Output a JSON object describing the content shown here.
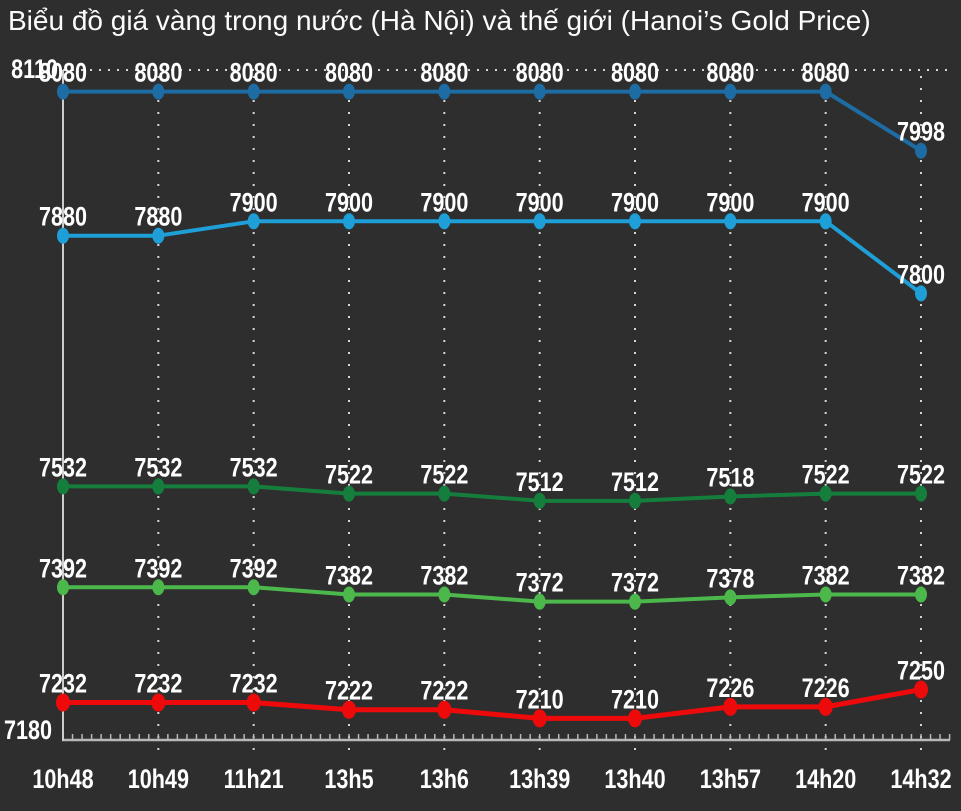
{
  "chart_data": {
    "type": "line",
    "title": "Biểu đồ giá vàng trong nước (Hà Nội) và thế giới (Hanoi’s Gold Price)",
    "categories": [
      "10h48",
      "10h49",
      "11h21",
      "13h5",
      "13h6",
      "13h39",
      "13h40",
      "13h57",
      "14h20",
      "14h32"
    ],
    "series": [
      {
        "name": "blue-dark",
        "color": "#1d6ca3",
        "values": [
          8080,
          8080,
          8080,
          8080,
          8080,
          8080,
          8080,
          8080,
          8080,
          7998
        ]
      },
      {
        "name": "blue-light",
        "color": "#1f9fd8",
        "values": [
          7880,
          7880,
          7900,
          7900,
          7900,
          7900,
          7900,
          7900,
          7900,
          7800
        ]
      },
      {
        "name": "green-dark",
        "color": "#157e3d",
        "values": [
          7532,
          7532,
          7532,
          7522,
          7522,
          7512,
          7512,
          7518,
          7522,
          7522
        ]
      },
      {
        "name": "green-light",
        "color": "#4cb84c",
        "values": [
          7392,
          7392,
          7392,
          7382,
          7382,
          7372,
          7372,
          7378,
          7382,
          7382
        ]
      },
      {
        "name": "red",
        "color": "#ee0a0a",
        "values": [
          7232,
          7232,
          7232,
          7222,
          7222,
          7210,
          7210,
          7226,
          7226,
          7250
        ]
      }
    ],
    "ylim": [
      7180,
      8110
    ],
    "y_axis_labels": {
      "top": "8110",
      "bottom": "7180"
    },
    "xlabel": "",
    "ylabel": "",
    "grid": "vertical-dotted",
    "legend": "none",
    "data_labels": "above-points",
    "colors": {
      "background": "#2e2e2e",
      "axis": "#b8b8b8",
      "gridline": "#d6d6d6",
      "label_text": "#ffffff"
    }
  }
}
